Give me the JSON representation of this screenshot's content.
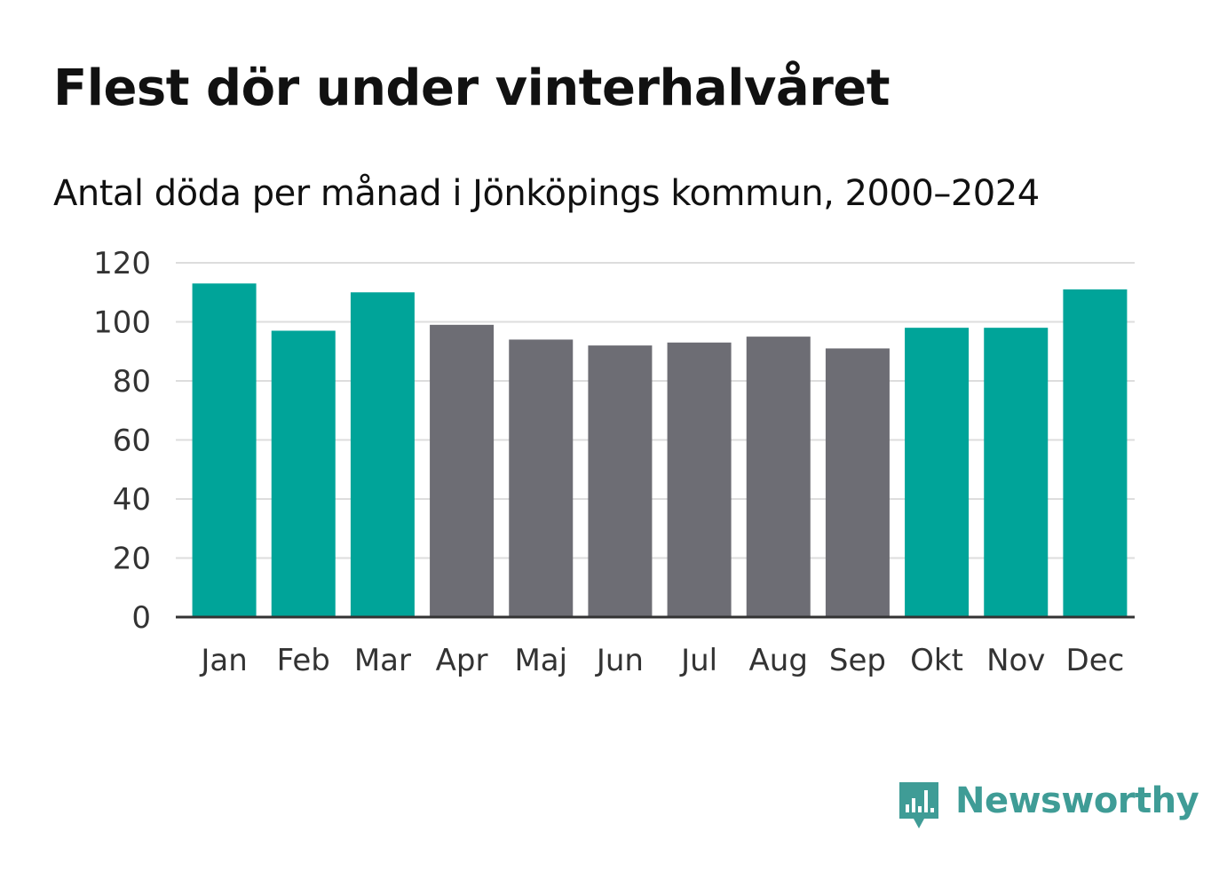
{
  "header": {
    "title": "Flest dör under vinterhalvåret",
    "subtitle": "Antal döda per månad i Jönköpings kommun, 2000–2024"
  },
  "colors": {
    "winter": "#00a499",
    "summer": "#6d6d74",
    "grid": "#dddddd",
    "axis": "#333333",
    "brand": "#3f9c96"
  },
  "chart_data": {
    "type": "bar",
    "title": "Flest dör under vinterhalvåret",
    "subtitle": "Antal döda per månad i Jönköpings kommun, 2000–2024",
    "xlabel": "",
    "ylabel": "",
    "ylim": [
      0,
      120
    ],
    "yticks": [
      0,
      20,
      40,
      60,
      80,
      100,
      120
    ],
    "grid": true,
    "categories": [
      "Jan",
      "Feb",
      "Mar",
      "Apr",
      "Maj",
      "Jun",
      "Jul",
      "Aug",
      "Sep",
      "Okt",
      "Nov",
      "Dec"
    ],
    "values": [
      113,
      97,
      110,
      99,
      94,
      92,
      93,
      95,
      91,
      98,
      98,
      111
    ],
    "season": [
      "winter",
      "winter",
      "winter",
      "summer",
      "summer",
      "summer",
      "summer",
      "summer",
      "summer",
      "winter",
      "winter",
      "winter"
    ]
  },
  "branding": {
    "name": "Newsworthy",
    "icon": "newsworthy-logo-icon"
  }
}
